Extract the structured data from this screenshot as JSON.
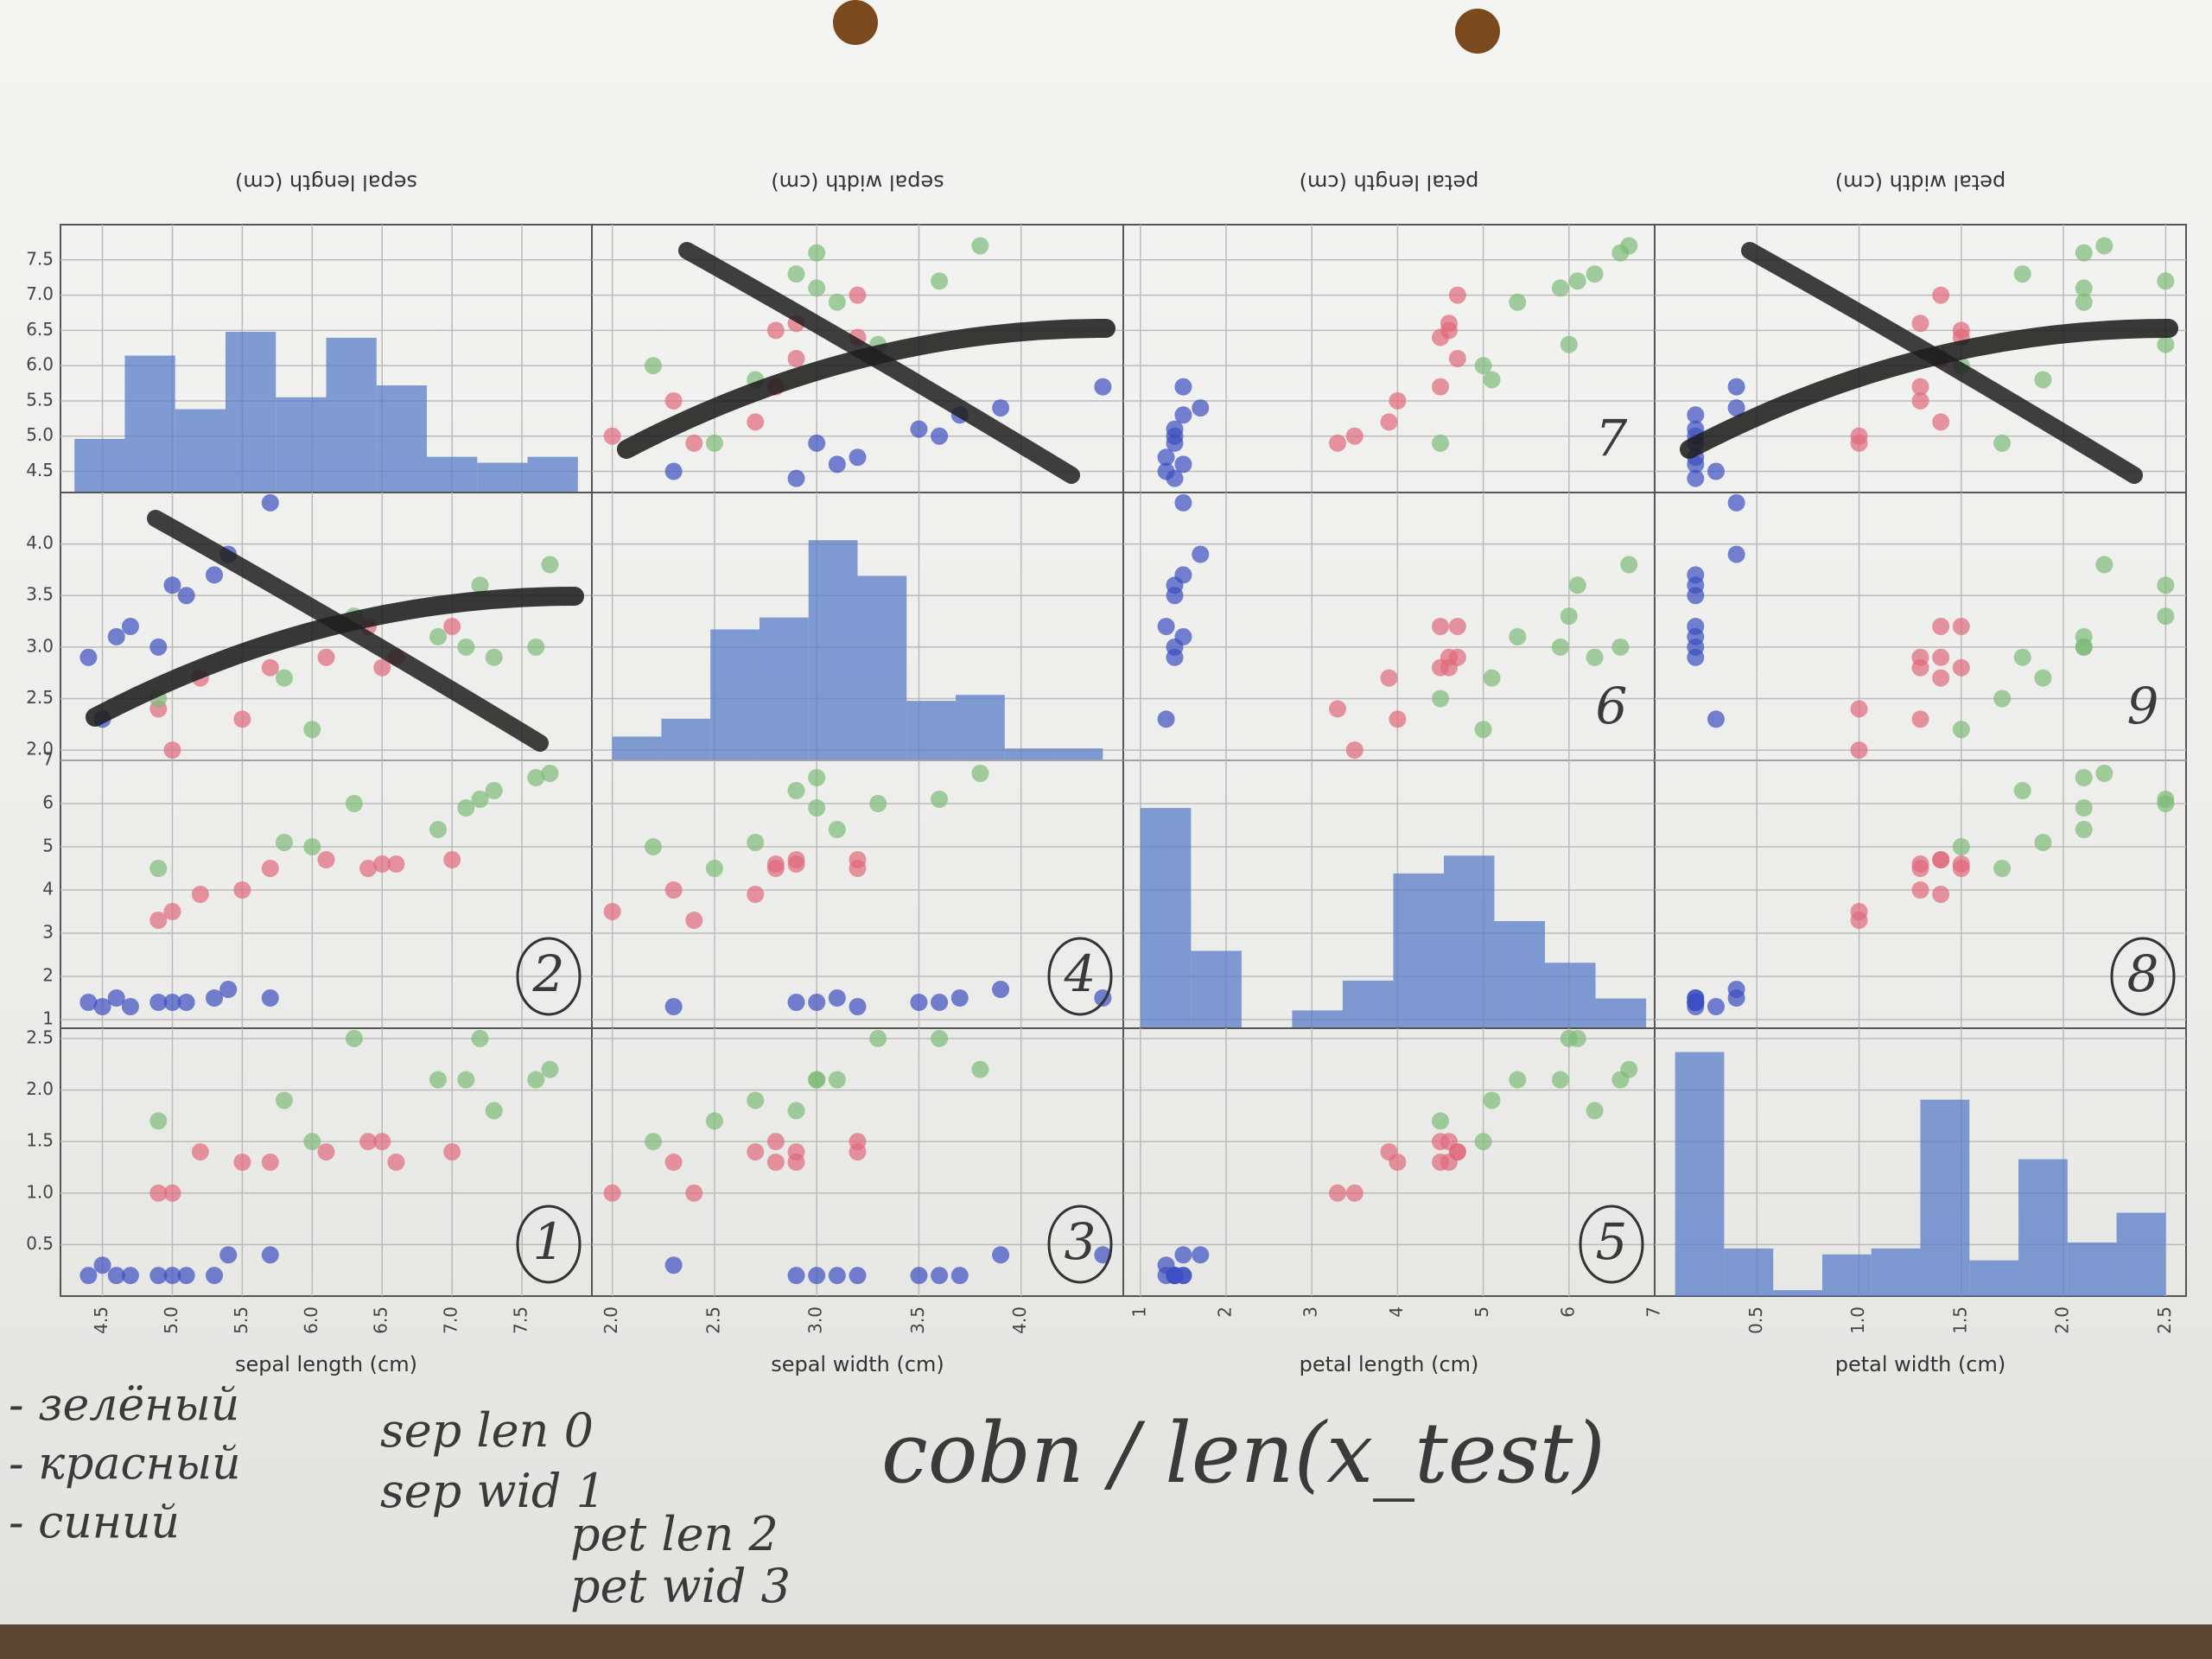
{
  "chart_data": {
    "type": "scatter_matrix",
    "variables": [
      {
        "label": "sepal length (cm)",
        "lim": [
          4.2,
          8.0
        ],
        "ticks": [
          4.5,
          {
            "value": 5,
            "label": "5.0"
          },
          5.5,
          {
            "value": 6,
            "label": "6.0"
          },
          6.5,
          {
            "value": 7,
            "label": "7.0"
          },
          7.5
        ],
        "bins": [
          4.3,
          4.66,
          5.02,
          5.38,
          5.74,
          6.1,
          6.46,
          6.82,
          7.18,
          7.54,
          7.9
        ],
        "counts": [
          9,
          23,
          14,
          27,
          16,
          26,
          18,
          6,
          5,
          6
        ]
      },
      {
        "label": "sepal width (cm)",
        "lim": [
          1.9,
          4.5
        ],
        "ticks": [
          {
            "value": 2,
            "label": "2.0"
          },
          2.5,
          {
            "value": 3,
            "label": "3.0"
          },
          3.5,
          {
            "value": 4,
            "label": "4.0"
          }
        ],
        "bins": [
          2.0,
          2.24,
          2.48,
          2.72,
          2.96,
          3.2,
          3.44,
          3.68,
          3.92,
          4.16,
          4.4
        ],
        "counts": [
          4,
          7,
          22,
          24,
          37,
          31,
          10,
          11,
          2,
          2
        ]
      },
      {
        "label": "petal length (cm)",
        "lim": [
          0.8,
          7.0
        ],
        "ticks": [
          1,
          2,
          3,
          4,
          5,
          6,
          7
        ],
        "bins": [
          1,
          1.59,
          2.18,
          2.77,
          3.36,
          3.95,
          4.54,
          5.13,
          5.72,
          6.31,
          6.9
        ],
        "counts": [
          37,
          13,
          0,
          3,
          8,
          26,
          29,
          18,
          11,
          5
        ]
      },
      {
        "label": "petal width (cm)",
        "lim": [
          0,
          2.6
        ],
        "ticks": [
          0.5,
          {
            "value": 1,
            "label": "1.0"
          },
          1.5,
          {
            "value": 2,
            "label": "2.0"
          },
          2.5
        ],
        "bins": [
          0.1,
          0.34,
          0.58,
          0.82,
          1.06,
          1.3,
          1.54,
          1.78,
          2.02,
          2.26,
          2.5
        ],
        "counts": [
          41,
          8,
          1,
          7,
          8,
          33,
          6,
          23,
          9,
          14
        ]
      }
    ],
    "count_lim": [
      0,
      45
    ],
    "hist_color": "#5a7ec8",
    "grid": true,
    "groups": [
      {
        "color": "#3c4fc0",
        "samples": [
          [
            5.1,
            3.5,
            1.4,
            0.2
          ],
          [
            4.9,
            3.0,
            1.4,
            0.2
          ],
          [
            4.7,
            3.2,
            1.3,
            0.2
          ],
          [
            4.6,
            3.1,
            1.5,
            0.2
          ],
          [
            5.0,
            3.6,
            1.4,
            0.2
          ],
          [
            5.4,
            3.9,
            1.7,
            0.4
          ],
          [
            4.4,
            2.9,
            1.4,
            0.2
          ],
          [
            5.7,
            4.4,
            1.5,
            0.4
          ],
          [
            4.5,
            2.3,
            1.3,
            0.3
          ],
          [
            5.3,
            3.7,
            1.5,
            0.2
          ]
        ]
      },
      {
        "color": "#e06a7c",
        "samples": [
          [
            7.0,
            3.2,
            4.7,
            1.4
          ],
          [
            6.4,
            3.2,
            4.5,
            1.5
          ],
          [
            5.5,
            2.3,
            4.0,
            1.3
          ],
          [
            6.5,
            2.8,
            4.6,
            1.5
          ],
          [
            5.7,
            2.8,
            4.5,
            1.3
          ],
          [
            4.9,
            2.4,
            3.3,
            1.0
          ],
          [
            6.6,
            2.9,
            4.6,
            1.3
          ],
          [
            5.2,
            2.7,
            3.9,
            1.4
          ],
          [
            5.0,
            2.0,
            3.5,
            1.0
          ],
          [
            6.1,
            2.9,
            4.7,
            1.4
          ]
        ]
      },
      {
        "color": "#7dbb78",
        "samples": [
          [
            6.3,
            3.3,
            6.0,
            2.5
          ],
          [
            5.8,
            2.7,
            5.1,
            1.9
          ],
          [
            7.1,
            3.0,
            5.9,
            2.1
          ],
          [
            7.6,
            3.0,
            6.6,
            2.1
          ],
          [
            4.9,
            2.5,
            4.5,
            1.7
          ],
          [
            7.3,
            2.9,
            6.3,
            1.8
          ],
          [
            7.7,
            3.8,
            6.7,
            2.2
          ],
          [
            6.0,
            2.2,
            5.0,
            1.5
          ],
          [
            7.2,
            3.6,
            6.1,
            2.5
          ],
          [
            6.9,
            3.1,
            5.4,
            2.1
          ]
        ]
      }
    ],
    "crossed_out": [
      [
        0,
        1
      ],
      [
        0,
        3
      ],
      [
        1,
        0
      ]
    ],
    "panel_notes": [
      {
        "panel": [
          0,
          2
        ],
        "text": "7",
        "circled": false
      },
      {
        "panel": [
          1,
          2
        ],
        "text": "6",
        "circled": false
      },
      {
        "panel": [
          1,
          3
        ],
        "text": "9",
        "circled": false
      },
      {
        "panel": [
          2,
          0
        ],
        "text": "2",
        "circled": true
      },
      {
        "panel": [
          2,
          1
        ],
        "text": "4",
        "circled": true
      },
      {
        "panel": [
          2,
          3
        ],
        "text": "8",
        "circled": true
      },
      {
        "panel": [
          3,
          0
        ],
        "text": "1",
        "circled": true
      },
      {
        "panel": [
          3,
          1
        ],
        "text": "3",
        "circled": true
      },
      {
        "panel": [
          3,
          2
        ],
        "text": "5",
        "circled": true
      }
    ],
    "color_notes": [
      "- зелёный",
      "- красный",
      "- синий"
    ],
    "index_notes": [
      "sep len 0",
      "sep wid 1",
      "pet len 2",
      "pet wid 3"
    ],
    "formula_note": "cobn / len(x_test)"
  }
}
